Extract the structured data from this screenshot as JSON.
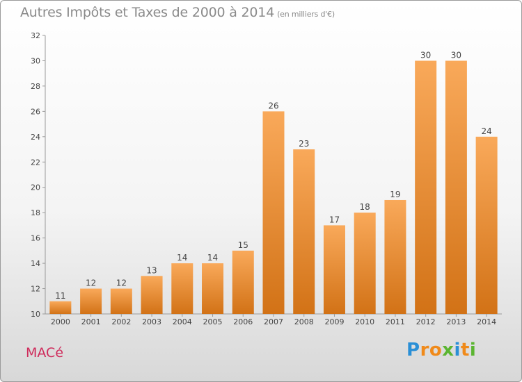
{
  "header": {
    "title": "Autres Impôts et Taxes de 2000 à 2014",
    "subtitle": "(en milliers d'€)"
  },
  "footer": {
    "place": "MACé",
    "logo_letters": [
      "P",
      "r",
      "o",
      "x",
      "i",
      "t",
      "i"
    ],
    "logo_colors": [
      "#2a8fd6",
      "#f08a1a",
      "#f08a1a",
      "#5bb531",
      "#2a8fd6",
      "#f08a1a",
      "#5bb531"
    ]
  },
  "chart_data": {
    "type": "bar",
    "title": "Autres Impôts et Taxes de 2000 à 2014",
    "subtitle": "(en milliers d'€)",
    "xlabel": "",
    "ylabel": "",
    "categories": [
      "2000",
      "2001",
      "2002",
      "2003",
      "2004",
      "2005",
      "2006",
      "2007",
      "2008",
      "2009",
      "2010",
      "2011",
      "2012",
      "2013",
      "2014"
    ],
    "values": [
      11,
      12,
      12,
      13,
      14,
      14,
      15,
      26,
      23,
      17,
      18,
      19,
      30,
      30,
      24
    ],
    "ylim": [
      10,
      32
    ],
    "yticks": [
      10,
      12,
      14,
      16,
      18,
      20,
      22,
      24,
      26,
      28,
      30,
      32
    ],
    "grid": false,
    "bar_color_light": "#f9a95a",
    "bar_color_dark": "#d27216",
    "axis_color": "#999999"
  }
}
